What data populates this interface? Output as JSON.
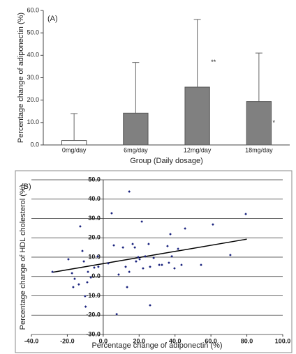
{
  "chart_data": [
    {
      "type": "bar",
      "annotation": "(A)",
      "x_label": "Group (Daily dosage)",
      "y_label": "Percentage change of adiponectin (%)",
      "categories": [
        "0mg/day",
        "6mg/day",
        "12mg/day",
        "18mg/day"
      ],
      "values": [
        2.0,
        14.2,
        25.8,
        19.4
      ],
      "errors": [
        12.0,
        22.6,
        30.2,
        21.6
      ],
      "significance": [
        null,
        null,
        "**",
        "*"
      ],
      "colors": [
        "#ffffff",
        "#808080",
        "#808080",
        "#808080"
      ],
      "ylim": [
        0,
        60
      ],
      "yticks": [
        {
          "value": 0,
          "label": "0.0"
        },
        {
          "value": 10,
          "label": "10.0"
        },
        {
          "value": 20,
          "label": "20.0"
        },
        {
          "value": 30,
          "label": "30.0"
        },
        {
          "value": 40,
          "label": "40.0"
        },
        {
          "value": 50,
          "label": "50.0"
        },
        {
          "value": 60,
          "label": "60.0"
        }
      ]
    },
    {
      "type": "scatter",
      "annotation": "(B)",
      "x_label": "Percentage change of adiponectin (%)",
      "y_label": "Percentage change of HDL cholesterol (%)",
      "color": "#1a237e",
      "grid": true,
      "x": [
        -28.3,
        -19.4,
        -12.8,
        -11.6,
        -10.8,
        -17.4,
        -15.9,
        -16.7,
        -13.6,
        -8.9,
        -6.9,
        -8.5,
        -5.0,
        -10.1,
        -9.8,
        -2.7,
        -3.0,
        2.8,
        4.7,
        5.9,
        8.6,
        7.5,
        11.0,
        12.5,
        14.5,
        14.5,
        13.3,
        16.4,
        17.6,
        18.3,
        19.5,
        20.3,
        21.5,
        22.2,
        23.4,
        25.3,
        26.1,
        26.1,
        28.1,
        31.2,
        32.7,
        35.8,
        36.6,
        37.4,
        38.2,
        39.7,
        41.7,
        43.6,
        45.6,
        54.5,
        61.1,
        70.8,
        79.4
      ],
      "y": [
        2.4,
        8.9,
        25.9,
        13.2,
        7.8,
        1.7,
        -1.2,
        -5.5,
        -4.1,
        -3.0,
        -0.5,
        2.4,
        4.6,
        -10.2,
        -15.6,
        5.0,
        10.4,
        6.8,
        32.7,
        16.1,
        1.0,
        -19.5,
        15.0,
        5.0,
        43.9,
        2.4,
        -5.5,
        16.8,
        15.0,
        7.8,
        10.0,
        8.9,
        28.4,
        4.2,
        10.4,
        16.8,
        -14.9,
        5.0,
        9.6,
        6.0,
        6.0,
        15.7,
        7.1,
        21.9,
        10.4,
        4.2,
        14.3,
        6.0,
        24.8,
        6.0,
        26.9,
        11.1,
        32.3
      ],
      "trend": {
        "x": [
          -28,
          80
        ],
        "y": [
          2.2,
          19.3
        ]
      },
      "xlim": [
        -40,
        100
      ],
      "ylim": [
        -30,
        50
      ],
      "xticks": [
        {
          "value": -40,
          "label": "-40.0"
        },
        {
          "value": -20,
          "label": "-20.0"
        },
        {
          "value": 0,
          "label": "0.0"
        },
        {
          "value": 20,
          "label": "20.0"
        },
        {
          "value": 40,
          "label": "40.0"
        },
        {
          "value": 60,
          "label": "60.0"
        },
        {
          "value": 80,
          "label": "80.0"
        },
        {
          "value": 100,
          "label": "100.0"
        }
      ],
      "yticks": [
        {
          "value": -30,
          "label": "-30.0"
        },
        {
          "value": -20,
          "label": "-20.0"
        },
        {
          "value": -10,
          "label": "-10.0"
        },
        {
          "value": 0,
          "label": "0.0"
        },
        {
          "value": 10,
          "label": "10.0"
        },
        {
          "value": 20,
          "label": "20.0"
        },
        {
          "value": 30,
          "label": "30.0"
        },
        {
          "value": 40,
          "label": "40.0"
        },
        {
          "value": 50,
          "label": "50.0"
        }
      ]
    }
  ]
}
